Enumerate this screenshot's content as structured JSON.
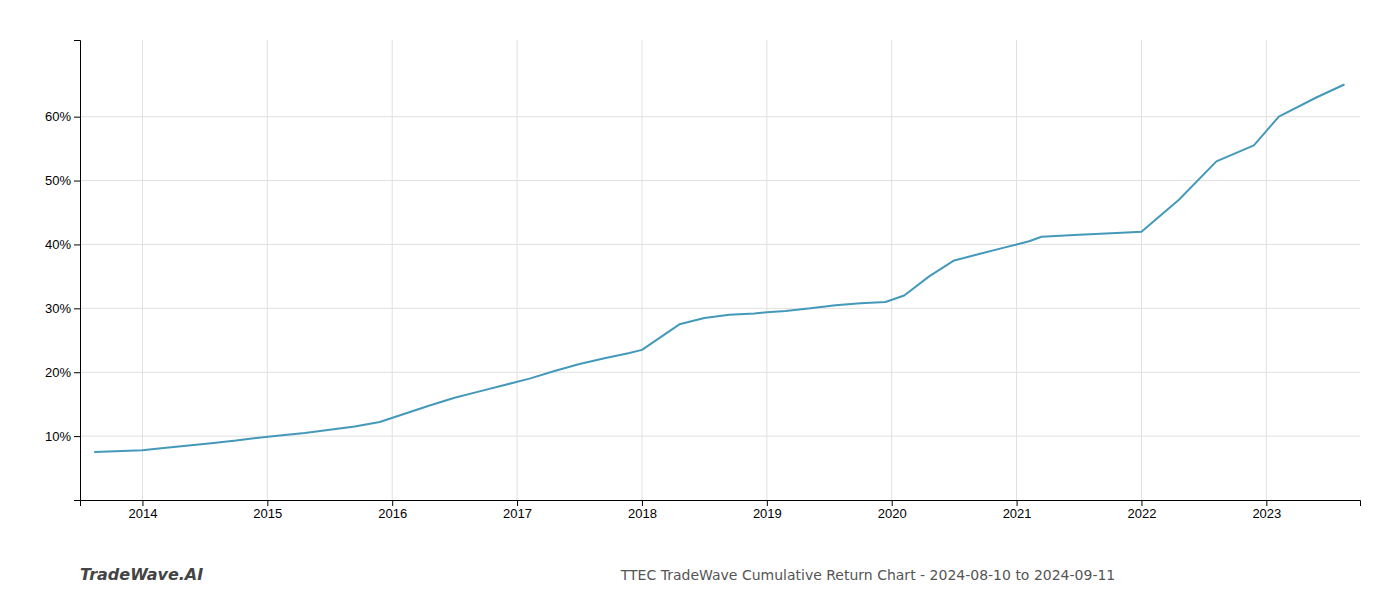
{
  "chart_data": {
    "type": "line",
    "title": "TTEC TradeWave Cumulative Return Chart - 2024-08-10 to 2024-09-11",
    "annotations": [
      "TradeWave.AI"
    ],
    "color": "#4499bb",
    "grid": true,
    "x": [
      2013.62,
      2014.0,
      2014.15,
      2014.35,
      2014.55,
      2014.75,
      2014.95,
      2015.1,
      2015.3,
      2015.5,
      2015.7,
      2015.9,
      2016.1,
      2016.3,
      2016.5,
      2016.7,
      2016.9,
      2017.1,
      2017.3,
      2017.5,
      2017.7,
      2017.9,
      2018.0,
      2018.15,
      2018.3,
      2018.5,
      2018.7,
      2018.9,
      2019.0,
      2019.15,
      2019.35,
      2019.55,
      2019.75,
      2019.95,
      2020.1,
      2020.3,
      2020.5,
      2020.7,
      2020.9,
      2021.0,
      2021.1,
      2021.2,
      2021.5,
      2021.8,
      2022.0,
      2022.3,
      2022.6,
      2022.9,
      2023.1,
      2023.4,
      2023.62
    ],
    "values": [
      7.5,
      7.8,
      8.1,
      8.5,
      8.9,
      9.3,
      9.8,
      10.1,
      10.5,
      11.0,
      11.5,
      12.2,
      13.5,
      14.8,
      16.0,
      17.0,
      18.0,
      19.0,
      20.2,
      21.3,
      22.2,
      23.0,
      23.5,
      25.5,
      27.5,
      28.5,
      29.0,
      29.2,
      29.4,
      29.6,
      30.0,
      30.5,
      30.8,
      31.0,
      32.0,
      35.0,
      37.5,
      38.5,
      39.5,
      40.0,
      40.5,
      41.2,
      41.5,
      41.8,
      42.0,
      47.0,
      53.0,
      55.5,
      60.0,
      63.0,
      65.0
    ],
    "xlim": [
      2013.5,
      2023.75
    ],
    "ylim": [
      0,
      72
    ],
    "xticks": [
      2014,
      2015,
      2016,
      2017,
      2018,
      2019,
      2020,
      2021,
      2022,
      2023
    ],
    "yticks": [
      {
        "value": 10,
        "label": "10%"
      },
      {
        "value": 20,
        "label": "20%"
      },
      {
        "value": 30,
        "label": "30%"
      },
      {
        "value": 40,
        "label": "40%"
      },
      {
        "value": 50,
        "label": "50%"
      },
      {
        "value": 60,
        "label": "60%"
      }
    ]
  }
}
